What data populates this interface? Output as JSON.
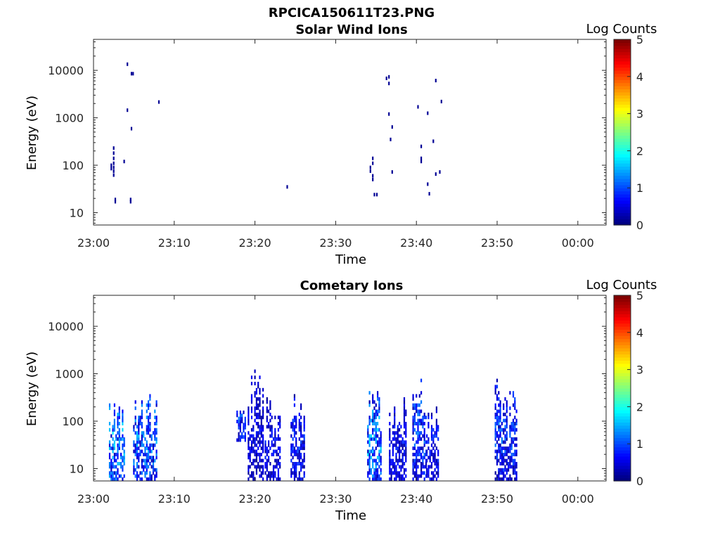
{
  "figure_title": "RPCICA150611T23.PNG",
  "chart_data": [
    {
      "type": "heatmap",
      "title": "Solar Wind Ions",
      "xlabel": "Time",
      "ylabel": "Energy (eV)",
      "x_ticks": [
        "23:00",
        "23:10",
        "23:20",
        "23:30",
        "23:40",
        "23:50",
        "00:00"
      ],
      "x_range_minutes": [
        0,
        63.5
      ],
      "y_scale": "log",
      "y_range": [
        5.5,
        45000
      ],
      "y_ticks": [
        10,
        100,
        1000,
        10000
      ],
      "y_tick_labels": [
        "10",
        "100",
        "1000",
        "10000"
      ],
      "colorbar": {
        "label": "Log Counts",
        "min": 0,
        "max": 5,
        "ticks": [
          "0",
          "1",
          "2",
          "3",
          "4",
          "5"
        ],
        "colormap": "jet"
      },
      "points": [
        {
          "t": 2.2,
          "e": 100,
          "c": 0.1
        },
        {
          "t": 2.2,
          "e": 85,
          "c": 0.1
        },
        {
          "t": 2.5,
          "e": 230,
          "c": 0.1
        },
        {
          "t": 2.5,
          "e": 180,
          "c": 0.1
        },
        {
          "t": 2.5,
          "e": 140,
          "c": 0.1
        },
        {
          "t": 2.5,
          "e": 110,
          "c": 0.1
        },
        {
          "t": 2.5,
          "e": 90,
          "c": 0.1
        },
        {
          "t": 2.5,
          "e": 75,
          "c": 0.1
        },
        {
          "t": 2.5,
          "e": 62,
          "c": 0.1
        },
        {
          "t": 2.7,
          "e": 19,
          "c": 0.1
        },
        {
          "t": 2.7,
          "e": 17,
          "c": 0.1
        },
        {
          "t": 3.8,
          "e": 120,
          "c": 0.1
        },
        {
          "t": 4.2,
          "e": 13500,
          "c": 0.1
        },
        {
          "t": 4.2,
          "e": 1450,
          "c": 0.1
        },
        {
          "t": 4.7,
          "e": 8500,
          "c": 0.1
        },
        {
          "t": 4.9,
          "e": 8500,
          "c": 0.1
        },
        {
          "t": 4.7,
          "e": 590,
          "c": 0.1
        },
        {
          "t": 4.6,
          "e": 19,
          "c": 0.1
        },
        {
          "t": 4.6,
          "e": 17,
          "c": 0.1
        },
        {
          "t": 8.1,
          "e": 2150,
          "c": 0.1
        },
        {
          "t": 24.0,
          "e": 35,
          "c": 0.1
        },
        {
          "t": 34.3,
          "e": 90,
          "c": 0.1
        },
        {
          "t": 34.3,
          "e": 75,
          "c": 0.1
        },
        {
          "t": 34.6,
          "e": 140,
          "c": 0.1
        },
        {
          "t": 34.6,
          "e": 110,
          "c": 0.1
        },
        {
          "t": 34.6,
          "e": 60,
          "c": 0.1
        },
        {
          "t": 34.6,
          "e": 50,
          "c": 0.1
        },
        {
          "t": 34.8,
          "e": 24,
          "c": 0.1
        },
        {
          "t": 35.1,
          "e": 24,
          "c": 0.1
        },
        {
          "t": 36.3,
          "e": 6800,
          "c": 0.1
        },
        {
          "t": 36.6,
          "e": 7300,
          "c": 0.1
        },
        {
          "t": 36.6,
          "e": 5300,
          "c": 0.1
        },
        {
          "t": 36.6,
          "e": 1200,
          "c": 0.1
        },
        {
          "t": 36.8,
          "e": 350,
          "c": 0.1
        },
        {
          "t": 37.0,
          "e": 640,
          "c": 0.1
        },
        {
          "t": 37.0,
          "e": 72,
          "c": 0.1
        },
        {
          "t": 40.2,
          "e": 1700,
          "c": 0.1
        },
        {
          "t": 40.6,
          "e": 250,
          "c": 0.1
        },
        {
          "t": 40.6,
          "e": 140,
          "c": 0.1
        },
        {
          "t": 40.6,
          "e": 120,
          "c": 0.1
        },
        {
          "t": 41.4,
          "e": 1250,
          "c": 0.1
        },
        {
          "t": 41.4,
          "e": 40,
          "c": 0.1
        },
        {
          "t": 41.6,
          "e": 25,
          "c": 0.1
        },
        {
          "t": 42.1,
          "e": 320,
          "c": 0.1
        },
        {
          "t": 42.4,
          "e": 6100,
          "c": 0.1
        },
        {
          "t": 42.4,
          "e": 65,
          "c": 0.1
        },
        {
          "t": 42.9,
          "e": 72,
          "c": 0.1
        },
        {
          "t": 43.1,
          "e": 2200,
          "c": 0.1
        }
      ]
    },
    {
      "type": "heatmap",
      "title": "Cometary Ions",
      "xlabel": "Time",
      "ylabel": "Energy (eV)",
      "x_ticks": [
        "23:00",
        "23:10",
        "23:20",
        "23:30",
        "23:40",
        "23:50",
        "00:00"
      ],
      "x_range_minutes": [
        0,
        63.5
      ],
      "y_scale": "log",
      "y_range": [
        5.5,
        45000
      ],
      "y_ticks": [
        10,
        100,
        1000,
        10000
      ],
      "y_tick_labels": [
        "10",
        "100",
        "1000",
        "10000"
      ],
      "colorbar": {
        "label": "Log Counts",
        "min": 0,
        "max": 5,
        "ticks": [
          "0",
          "1",
          "2",
          "3",
          "4",
          "5"
        ],
        "colormap": "jet"
      },
      "bursts": [
        {
          "t0": 2.0,
          "t1": 3.9,
          "emin": 6,
          "emax": 550,
          "peak": 1.9
        },
        {
          "t0": 5.0,
          "t1": 7.9,
          "emin": 6,
          "emax": 470,
          "peak": 1.7
        },
        {
          "t0": 17.8,
          "t1": 19.0,
          "emin": 40,
          "emax": 230,
          "peak": 1.4
        },
        {
          "t0": 19.2,
          "t1": 21.2,
          "emin": 6,
          "emax": 1500,
          "peak": 0.8
        },
        {
          "t0": 21.3,
          "t1": 23.3,
          "emin": 6,
          "emax": 300,
          "peak": 0.9
        },
        {
          "t0": 24.5,
          "t1": 26.3,
          "emin": 6,
          "emax": 450,
          "peak": 1.1
        },
        {
          "t0": 34.0,
          "t1": 35.8,
          "emin": 6,
          "emax": 500,
          "peak": 1.9
        },
        {
          "t0": 36.7,
          "t1": 38.8,
          "emin": 6,
          "emax": 350,
          "peak": 0.9
        },
        {
          "t0": 39.6,
          "t1": 41.3,
          "emin": 6,
          "emax": 1600,
          "peak": 1.4
        },
        {
          "t0": 41.3,
          "t1": 42.9,
          "emin": 6,
          "emax": 300,
          "peak": 1.0
        },
        {
          "t0": 49.8,
          "t1": 52.5,
          "emin": 6,
          "emax": 850,
          "peak": 1.3
        }
      ]
    }
  ]
}
